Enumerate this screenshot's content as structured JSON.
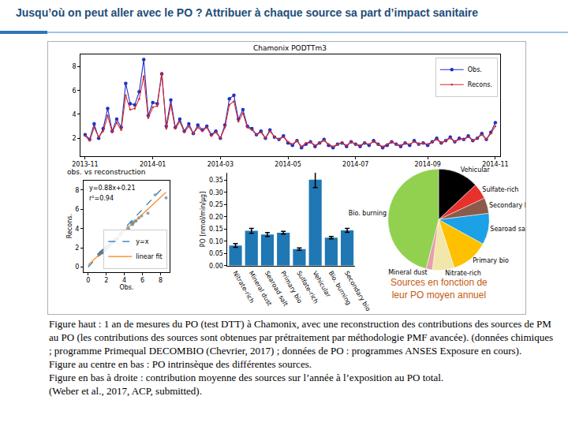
{
  "slide": {
    "title": "Jusqu’où on peut aller avec le PO ? Attribuer à chaque source sa part d’impact sanitaire",
    "caption": [
      "Figure haut : 1 an de mesures du PO (test DTT) à Chamonix, avec une reconstruction des contributions des sources de PM au PO (les contributions des sources sont obtenues par prétraitement par méthodologie PMF avancée). (données chimiques ; programme Primequal DECOMBIO (Chevrier, 2017) ; données de PO : programmes ANSES Exposure en cours).",
      "Figure au centre en bas : PO intrinsèque des différentes sources.",
      "Figure en bas à droite : contribution moyenne des sources sur l’année à l’exposition au PO total.",
      "(Weber et al., 2017, ACP, submitted)."
    ]
  },
  "chart_data": [
    {
      "type": "line",
      "title": "Chamonix PODTTm3",
      "categories": [
        "2013-11",
        null,
        null,
        null,
        null,
        null,
        null,
        null,
        null,
        null,
        null,
        null,
        null,
        null,
        null,
        "2014-01",
        null,
        null,
        null,
        null,
        null,
        null,
        null,
        null,
        null,
        null,
        null,
        null,
        null,
        null,
        "2014-03",
        null,
        null,
        null,
        null,
        null,
        null,
        null,
        null,
        null,
        null,
        null,
        null,
        null,
        null,
        "2014-05",
        null,
        null,
        null,
        null,
        null,
        null,
        null,
        null,
        null,
        null,
        null,
        null,
        null,
        null,
        "2014-07",
        null,
        null,
        null,
        null,
        null,
        null,
        null,
        null,
        null,
        null,
        null,
        null,
        null,
        null,
        null,
        "2014-09",
        null,
        null,
        null,
        null,
        null,
        null,
        null,
        null,
        null,
        null,
        null,
        null,
        null,
        null,
        "2014-11"
      ],
      "series": [
        {
          "name": "Obs.",
          "color": "#2030c8",
          "marker": "circle",
          "values": [
            2.3,
            1.9,
            3.2,
            2.0,
            2.8,
            4.5,
            2.6,
            3.6,
            2.9,
            6.6,
            4.9,
            4.8,
            5.9,
            8.6,
            3.9,
            5.0,
            4.9,
            7.4,
            3.0,
            5.2,
            2.9,
            3.6,
            2.6,
            3.2,
            2.4,
            3.1,
            2.7,
            3.0,
            2.3,
            2.6,
            2.0,
            3.1,
            5.3,
            5.6,
            3.6,
            4.4,
            3.0,
            2.8,
            2.3,
            2.6,
            2.0,
            2.7,
            2.1,
            1.9,
            2.2,
            1.6,
            1.4,
            1.8,
            1.2,
            1.5,
            1.7,
            1.3,
            1.6,
            1.9,
            1.4,
            1.2,
            1.5,
            1.6,
            1.3,
            1.7,
            1.5,
            1.3,
            1.6,
            1.4,
            1.8,
            1.5,
            1.2,
            1.4,
            1.7,
            1.5,
            1.3,
            1.6,
            1.4,
            1.8,
            1.5,
            1.6,
            1.4,
            1.7,
            2.0,
            1.6,
            1.8,
            2.1,
            1.7,
            2.0,
            1.9,
            2.2,
            1.8,
            2.0,
            2.4,
            1.9,
            2.5,
            3.3
          ]
        },
        {
          "name": "Recons.",
          "color": "#d62728",
          "marker": "point",
          "values": [
            2.2,
            1.8,
            2.9,
            2.1,
            2.6,
            3.9,
            2.5,
            3.3,
            2.7,
            5.6,
            4.4,
            4.5,
            5.3,
            7.2,
            3.7,
            4.6,
            4.7,
            7.5,
            2.8,
            4.8,
            2.8,
            3.4,
            2.5,
            3.0,
            2.4,
            2.9,
            2.6,
            2.9,
            2.2,
            2.5,
            2.0,
            2.9,
            4.8,
            5.1,
            3.4,
            4.1,
            2.9,
            2.7,
            2.3,
            2.5,
            2.0,
            2.6,
            2.1,
            1.9,
            2.1,
            1.7,
            1.5,
            1.8,
            1.3,
            1.6,
            1.7,
            1.4,
            1.6,
            1.8,
            1.5,
            1.3,
            1.5,
            1.6,
            1.4,
            1.7,
            1.5,
            1.4,
            1.6,
            1.5,
            1.7,
            1.5,
            1.3,
            1.5,
            1.7,
            1.5,
            1.4,
            1.6,
            1.5,
            1.7,
            1.5,
            1.6,
            1.5,
            1.7,
            1.9,
            1.6,
            1.8,
            2.0,
            1.7,
            1.9,
            1.9,
            2.1,
            1.8,
            2.0,
            2.3,
            1.9,
            2.4,
            3.0
          ]
        }
      ],
      "ylim": [
        0.5,
        9
      ],
      "yticks": [
        2,
        4,
        6,
        8
      ],
      "grid": false,
      "legend": "upper right"
    },
    {
      "type": "scatter",
      "title": "obs. vs reconstruction",
      "xlabel": "Obs.",
      "ylabel": "Recons.",
      "annotations": [
        "y=0.88x+0.21",
        "r²=0.94"
      ],
      "series": [
        {
          "type": "scatter",
          "marker": "circle",
          "color": "#1f77b4",
          "x": [
            2.3,
            1.9,
            3.2,
            2.0,
            2.8,
            4.5,
            2.6,
            3.6,
            2.9,
            6.6,
            4.9,
            4.8,
            5.9,
            8.6,
            3.9,
            5.0,
            4.9,
            7.4,
            3.0,
            5.2,
            2.9,
            3.6,
            2.6,
            3.2,
            2.4,
            3.1,
            2.7,
            3.0,
            2.3,
            2.6,
            2.0,
            3.1,
            5.3,
            5.6,
            3.6,
            4.4,
            3.0,
            2.8,
            2.3,
            2.6,
            2.0,
            2.7,
            2.1,
            1.9,
            2.2,
            1.6,
            1.4,
            1.8,
            1.2,
            1.5,
            1.7,
            1.3,
            1.6,
            1.9,
            1.4,
            1.2,
            1.5,
            1.6,
            1.3,
            1.7,
            1.5,
            1.3,
            1.6,
            1.4,
            1.8,
            1.5,
            1.2,
            1.4,
            1.7,
            1.5,
            1.3,
            1.6,
            1.4,
            1.8,
            1.5,
            1.6,
            1.4,
            1.7,
            2.0,
            1.6,
            1.8,
            2.1,
            1.7,
            2.0,
            1.9,
            2.2,
            1.8,
            2.0,
            2.4,
            1.9,
            2.5,
            3.3
          ],
          "values": [
            2.2,
            1.8,
            2.9,
            2.1,
            2.6,
            3.9,
            2.5,
            3.3,
            2.7,
            5.6,
            4.4,
            4.5,
            5.3,
            7.2,
            3.7,
            4.6,
            4.7,
            7.5,
            2.8,
            4.8,
            2.8,
            3.4,
            2.5,
            3.0,
            2.4,
            2.9,
            2.6,
            2.9,
            2.2,
            2.5,
            2.0,
            2.9,
            4.8,
            5.1,
            3.4,
            4.1,
            2.9,
            2.7,
            2.3,
            2.5,
            2.0,
            2.6,
            2.1,
            1.9,
            2.1,
            1.7,
            1.5,
            1.8,
            1.3,
            1.6,
            1.7,
            1.4,
            1.6,
            1.8,
            1.5,
            1.3,
            1.5,
            1.6,
            1.4,
            1.7,
            1.5,
            1.4,
            1.6,
            1.5,
            1.7,
            1.5,
            1.3,
            1.5,
            1.7,
            1.5,
            1.4,
            1.6,
            1.5,
            1.7,
            1.5,
            1.6,
            1.5,
            1.7,
            1.9,
            1.6,
            1.8,
            2.0,
            1.7,
            1.9,
            1.9,
            2.1,
            1.8,
            2.0,
            2.3,
            1.9,
            2.4,
            3.0
          ]
        },
        {
          "name": "y=x",
          "type": "line",
          "line_style": "dashed",
          "color": "#1f77b4",
          "x": [
            0,
            8.6
          ],
          "values": [
            0,
            8.6
          ]
        },
        {
          "name": "linear fit",
          "type": "line",
          "line_style": "solid",
          "color": "#ff7f0e",
          "x": [
            0,
            8.6
          ],
          "values": [
            0.21,
            7.78
          ]
        }
      ],
      "xlim": [
        -0.5,
        9
      ],
      "ylim": [
        -0.5,
        9
      ],
      "xticks": [
        0,
        2,
        4,
        6,
        8
      ],
      "yticks": [
        0,
        2,
        4,
        6,
        8
      ],
      "grid": false,
      "legend": "lower right"
    },
    {
      "type": "bar",
      "ylabel": "PO [nmol/min/µg]",
      "categories": [
        "Nitrate-rich",
        "Mineral dust",
        "Searoad salt",
        "Primary bio",
        "Sulfate-rich",
        "Vehicular",
        "Bio. burning",
        "Secondary bio"
      ],
      "values": [
        0.083,
        0.143,
        0.128,
        0.135,
        0.068,
        0.352,
        0.115,
        0.145
      ],
      "errors": [
        0.008,
        0.01,
        0.008,
        0.006,
        0.005,
        0.032,
        0.005,
        0.008
      ],
      "color": "#1f77b4",
      "ylim": [
        0,
        0.38
      ],
      "yticks": [
        {
          "value": 0,
          "label": "0.00"
        },
        0.05,
        {
          "value": 0.1,
          "label": "0.10"
        },
        0.15,
        {
          "value": 0.2,
          "label": "0.20"
        },
        0.25,
        {
          "value": 0.3,
          "label": "0.30"
        },
        0.35
      ],
      "grid": false
    },
    {
      "type": "pie",
      "subtitle": [
        "Sources en fonction de",
        "leur PO moyen annuel"
      ],
      "categories": [
        "Vehicular",
        "Sulfate-rich",
        "Secondary bio",
        "Searoad salt",
        "Primary bio",
        "Nitrate-rich",
        "Mineral dust",
        "Bio. burning"
      ],
      "values": [
        13,
        5,
        5,
        10,
        12,
        7,
        2,
        46
      ],
      "colors": [
        "#000000",
        "#e8312a",
        "#8b5a4a",
        "#1ca0e6",
        "#ffc000",
        "#f2e6a8",
        "#e6a0a8",
        "#92d050"
      ]
    }
  ]
}
